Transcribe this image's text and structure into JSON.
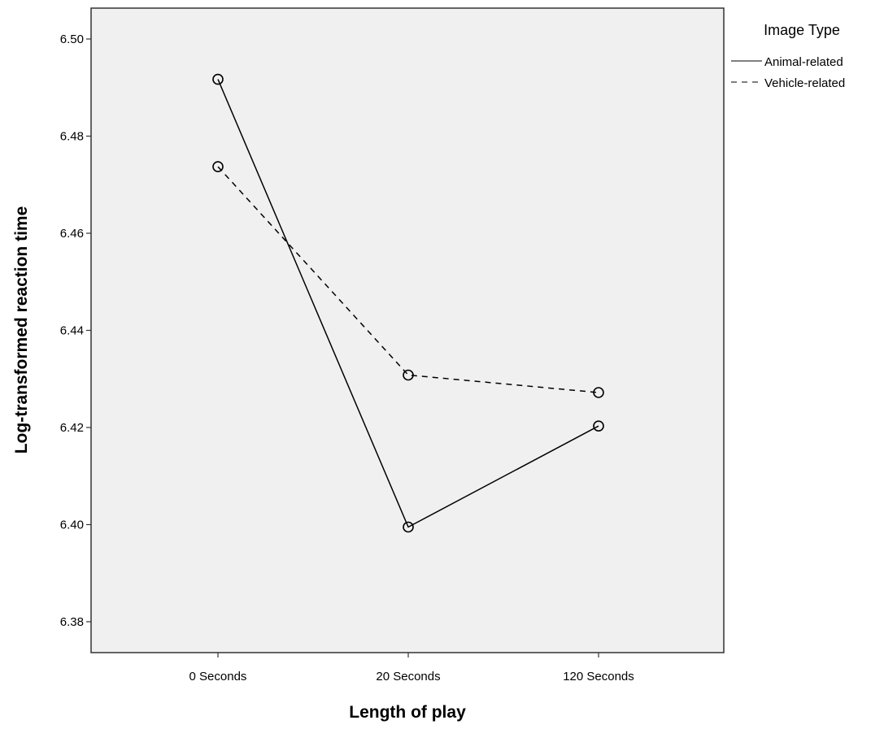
{
  "chart_data": {
    "type": "line",
    "categories": [
      "0 Seconds",
      "20 Seconds",
      "120 Seconds"
    ],
    "xlabel": "Length of play",
    "ylabel": "Log-transformed reaction time",
    "ylim": [
      6.373,
      6.508
    ],
    "yticks": [
      6.38,
      6.4,
      6.42,
      6.44,
      6.46,
      6.48,
      6.5
    ],
    "ytick_labels": [
      "6.38",
      "6.40",
      "6.42",
      "6.44",
      "6.46",
      "6.48",
      "6.50"
    ],
    "grid": false,
    "plot_background": "#f0f0f0",
    "line_color": "#000000",
    "legend": {
      "title": "Image Type",
      "placement": "top-right, outside plot"
    },
    "series": [
      {
        "name": "Animal-related",
        "style": "solid",
        "values": [
          6.4917,
          6.3995,
          6.4203
        ]
      },
      {
        "name": "Vehicle-related",
        "style": "dashed",
        "values": [
          6.4737,
          6.4308,
          6.4272
        ]
      }
    ]
  }
}
